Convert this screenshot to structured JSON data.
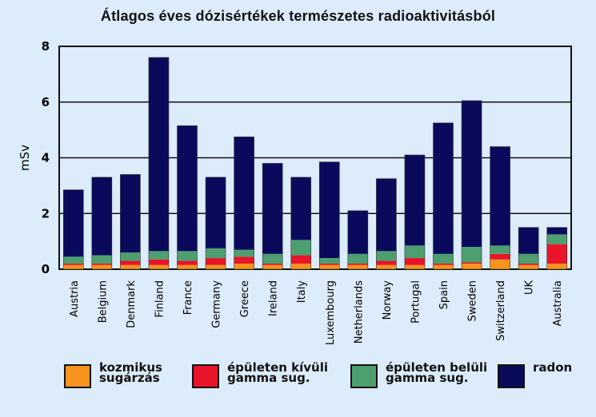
{
  "chart_data": {
    "type": "bar",
    "stacked": true,
    "title": "Átlagos éves dózisértékek természetes radioaktivitásból",
    "xlabel": "",
    "ylabel": "mSv",
    "ylim": [
      0,
      8
    ],
    "yticks": [
      0,
      2,
      4,
      6,
      8
    ],
    "grid": true,
    "legend_position": "bottom",
    "categories": [
      "Austria",
      "Belgium",
      "Denmark",
      "Finland",
      "France",
      "Germany",
      "Greece",
      "Ireland",
      "Italy",
      "Luxembourg",
      "Netherlands",
      "Norway",
      "Portugal",
      "Spain",
      "Sweden",
      "Switzerland",
      "UK",
      "Australia"
    ],
    "series": [
      {
        "name": "kozmikus sugárzás",
        "color": "#f7941d",
        "values": [
          0.15,
          0.15,
          0.15,
          0.15,
          0.15,
          0.15,
          0.2,
          0.15,
          0.2,
          0.15,
          0.15,
          0.15,
          0.15,
          0.15,
          0.2,
          0.35,
          0.15,
          0.2
        ]
      },
      {
        "name": "épületen kívüli gamma sug.",
        "color": "#e8152a",
        "values": [
          0.05,
          0.05,
          0.15,
          0.2,
          0.15,
          0.25,
          0.25,
          0.05,
          0.3,
          0.05,
          0.05,
          0.15,
          0.25,
          0.05,
          0.05,
          0.2,
          0.05,
          0.7
        ]
      },
      {
        "name": "épületen belüli gamma sug.",
        "color": "#4e9f70",
        "values": [
          0.25,
          0.3,
          0.3,
          0.3,
          0.35,
          0.35,
          0.25,
          0.35,
          0.55,
          0.2,
          0.35,
          0.35,
          0.45,
          0.35,
          0.55,
          0.3,
          0.35,
          0.35
        ]
      },
      {
        "name": "radon",
        "color": "#0a0a5c",
        "values": [
          2.4,
          2.8,
          2.8,
          6.95,
          4.5,
          2.55,
          4.05,
          3.25,
          2.25,
          3.45,
          1.55,
          2.6,
          3.25,
          4.7,
          5.25,
          3.55,
          0.95,
          0.25
        ]
      }
    ]
  },
  "legend": [
    {
      "label": "kozmikus\nsugárzás",
      "color": "#f7941d"
    },
    {
      "label": "épületen kívüli\ngamma sug.",
      "color": "#e8152a"
    },
    {
      "label": "épületen belüli\ngamma sug.",
      "color": "#4e9f70"
    },
    {
      "label": "radon",
      "color": "#0a0a5c"
    }
  ]
}
